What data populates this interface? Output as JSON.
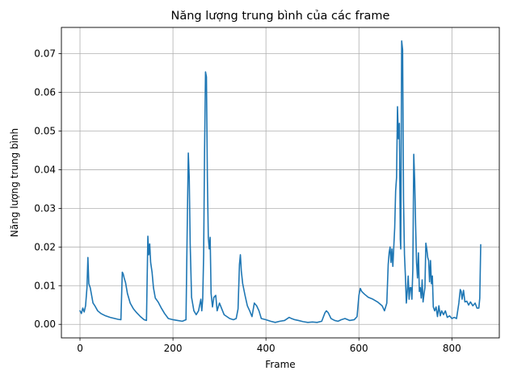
{
  "chart_data": {
    "type": "line",
    "title": "Năng lượng trung bình của các frame",
    "xlabel": "Frame",
    "ylabel": "Năng lượng trung bình",
    "xlim": [
      -40,
      902
    ],
    "ylim": [
      -0.0035,
      0.0768
    ],
    "xticks": [
      0,
      200,
      400,
      600,
      800
    ],
    "yticks": [
      0.0,
      0.01,
      0.02,
      0.03,
      0.04,
      0.05,
      0.06,
      0.07
    ],
    "ytick_labels": [
      "0.00",
      "0.01",
      "0.02",
      "0.03",
      "0.04",
      "0.05",
      "0.06",
      "0.07"
    ],
    "grid": true,
    "line_color": "#1f77b4",
    "series": [
      {
        "points": [
          [
            0,
            0.0035
          ],
          [
            3,
            0.0028
          ],
          [
            6,
            0.0042
          ],
          [
            9,
            0.0032
          ],
          [
            12,
            0.0048
          ],
          [
            15,
            0.0095
          ],
          [
            17,
            0.0173
          ],
          [
            19,
            0.0105
          ],
          [
            22,
            0.0095
          ],
          [
            25,
            0.0075
          ],
          [
            28,
            0.0055
          ],
          [
            32,
            0.0048
          ],
          [
            38,
            0.0035
          ],
          [
            45,
            0.0028
          ],
          [
            55,
            0.0022
          ],
          [
            65,
            0.0018
          ],
          [
            75,
            0.0015
          ],
          [
            82,
            0.0013
          ],
          [
            88,
            0.0012
          ],
          [
            91,
            0.0135
          ],
          [
            93,
            0.013
          ],
          [
            95,
            0.012
          ],
          [
            98,
            0.0108
          ],
          [
            102,
            0.008
          ],
          [
            108,
            0.0055
          ],
          [
            115,
            0.004
          ],
          [
            122,
            0.003
          ],
          [
            130,
            0.002
          ],
          [
            138,
            0.0012
          ],
          [
            143,
            0.001
          ],
          [
            146,
            0.0228
          ],
          [
            148,
            0.018
          ],
          [
            150,
            0.0208
          ],
          [
            152,
            0.016
          ],
          [
            155,
            0.0135
          ],
          [
            158,
            0.0095
          ],
          [
            162,
            0.0068
          ],
          [
            168,
            0.0058
          ],
          [
            175,
            0.0042
          ],
          [
            182,
            0.0028
          ],
          [
            190,
            0.0015
          ],
          [
            200,
            0.0012
          ],
          [
            210,
            0.001
          ],
          [
            220,
            0.0008
          ],
          [
            228,
            0.0012
          ],
          [
            231,
            0.028
          ],
          [
            233,
            0.0443
          ],
          [
            235,
            0.038
          ],
          [
            237,
            0.021
          ],
          [
            240,
            0.007
          ],
          [
            245,
            0.0035
          ],
          [
            250,
            0.0025
          ],
          [
            255,
            0.0035
          ],
          [
            260,
            0.0065
          ],
          [
            262,
            0.0035
          ],
          [
            264,
            0.0065
          ],
          [
            266,
            0.018
          ],
          [
            268,
            0.0453
          ],
          [
            270,
            0.0653
          ],
          [
            272,
            0.064
          ],
          [
            274,
            0.038
          ],
          [
            276,
            0.0225
          ],
          [
            278,
            0.0195
          ],
          [
            280,
            0.0225
          ],
          [
            282,
            0.008
          ],
          [
            285,
            0.0045
          ],
          [
            288,
            0.007
          ],
          [
            292,
            0.0075
          ],
          [
            295,
            0.0035
          ],
          [
            300,
            0.0055
          ],
          [
            305,
            0.004
          ],
          [
            310,
            0.0025
          ],
          [
            316,
            0.002
          ],
          [
            322,
            0.0015
          ],
          [
            330,
            0.0012
          ],
          [
            336,
            0.0015
          ],
          [
            340,
            0.004
          ],
          [
            343,
            0.0155
          ],
          [
            345,
            0.018
          ],
          [
            347,
            0.0138
          ],
          [
            350,
            0.0105
          ],
          [
            355,
            0.0075
          ],
          [
            360,
            0.0048
          ],
          [
            365,
            0.0035
          ],
          [
            370,
            0.002
          ],
          [
            375,
            0.0055
          ],
          [
            380,
            0.0048
          ],
          [
            385,
            0.0035
          ],
          [
            390,
            0.0015
          ],
          [
            400,
            0.0012
          ],
          [
            410,
            0.0008
          ],
          [
            420,
            0.0005
          ],
          [
            430,
            0.0008
          ],
          [
            440,
            0.001
          ],
          [
            450,
            0.0018
          ],
          [
            455,
            0.0015
          ],
          [
            462,
            0.0012
          ],
          [
            470,
            0.001
          ],
          [
            480,
            0.0007
          ],
          [
            490,
            0.0005
          ],
          [
            500,
            0.0006
          ],
          [
            510,
            0.0005
          ],
          [
            520,
            0.0008
          ],
          [
            527,
            0.003
          ],
          [
            530,
            0.0035
          ],
          [
            534,
            0.003
          ],
          [
            540,
            0.0015
          ],
          [
            548,
            0.001
          ],
          [
            555,
            0.0008
          ],
          [
            562,
            0.0012
          ],
          [
            570,
            0.0015
          ],
          [
            580,
            0.001
          ],
          [
            590,
            0.0012
          ],
          [
            596,
            0.002
          ],
          [
            600,
            0.0075
          ],
          [
            603,
            0.0093
          ],
          [
            606,
            0.0085
          ],
          [
            612,
            0.0078
          ],
          [
            620,
            0.007
          ],
          [
            630,
            0.0065
          ],
          [
            640,
            0.0058
          ],
          [
            650,
            0.0048
          ],
          [
            655,
            0.0035
          ],
          [
            660,
            0.0055
          ],
          [
            663,
            0.0155
          ],
          [
            665,
            0.0185
          ],
          [
            667,
            0.02
          ],
          [
            669,
            0.016
          ],
          [
            671,
            0.0195
          ],
          [
            673,
            0.015
          ],
          [
            675,
            0.02
          ],
          [
            677,
            0.025
          ],
          [
            679,
            0.0345
          ],
          [
            681,
            0.038
          ],
          [
            683,
            0.0563
          ],
          [
            685,
            0.048
          ],
          [
            687,
            0.052
          ],
          [
            689,
            0.022
          ],
          [
            690,
            0.0195
          ],
          [
            692,
            0.0733
          ],
          [
            694,
            0.071
          ],
          [
            696,
            0.032
          ],
          [
            698,
            0.018
          ],
          [
            700,
            0.0125
          ],
          [
            702,
            0.0055
          ],
          [
            704,
            0.0085
          ],
          [
            706,
            0.0125
          ],
          [
            708,
            0.0065
          ],
          [
            710,
            0.0095
          ],
          [
            712,
            0.0095
          ],
          [
            714,
            0.0065
          ],
          [
            716,
            0.0143
          ],
          [
            718,
            0.044
          ],
          [
            720,
            0.037
          ],
          [
            722,
            0.0255
          ],
          [
            724,
            0.016
          ],
          [
            726,
            0.012
          ],
          [
            728,
            0.0185
          ],
          [
            730,
            0.0085
          ],
          [
            732,
            0.0095
          ],
          [
            734,
            0.0068
          ],
          [
            736,
            0.0115
          ],
          [
            738,
            0.0058
          ],
          [
            740,
            0.0078
          ],
          [
            742,
            0.0095
          ],
          [
            744,
            0.021
          ],
          [
            746,
            0.0195
          ],
          [
            748,
            0.0173
          ],
          [
            750,
            0.0165
          ],
          [
            752,
            0.011
          ],
          [
            754,
            0.0165
          ],
          [
            756,
            0.0105
          ],
          [
            758,
            0.0125
          ],
          [
            760,
            0.0045
          ],
          [
            763,
            0.0035
          ],
          [
            766,
            0.0045
          ],
          [
            769,
            0.002
          ],
          [
            772,
            0.0048
          ],
          [
            775,
            0.0022
          ],
          [
            778,
            0.0035
          ],
          [
            782,
            0.0025
          ],
          [
            786,
            0.0035
          ],
          [
            790,
            0.0018
          ],
          [
            795,
            0.0022
          ],
          [
            800,
            0.0015
          ],
          [
            805,
            0.0018
          ],
          [
            810,
            0.0015
          ],
          [
            815,
            0.0055
          ],
          [
            818,
            0.009
          ],
          [
            820,
            0.0085
          ],
          [
            822,
            0.0065
          ],
          [
            825,
            0.0088
          ],
          [
            828,
            0.0058
          ],
          [
            832,
            0.006
          ],
          [
            836,
            0.005
          ],
          [
            840,
            0.0058
          ],
          [
            845,
            0.0048
          ],
          [
            850,
            0.0055
          ],
          [
            854,
            0.0042
          ],
          [
            858,
            0.0042
          ],
          [
            860,
            0.0068
          ],
          [
            862,
            0.0206
          ]
        ]
      }
    ]
  }
}
